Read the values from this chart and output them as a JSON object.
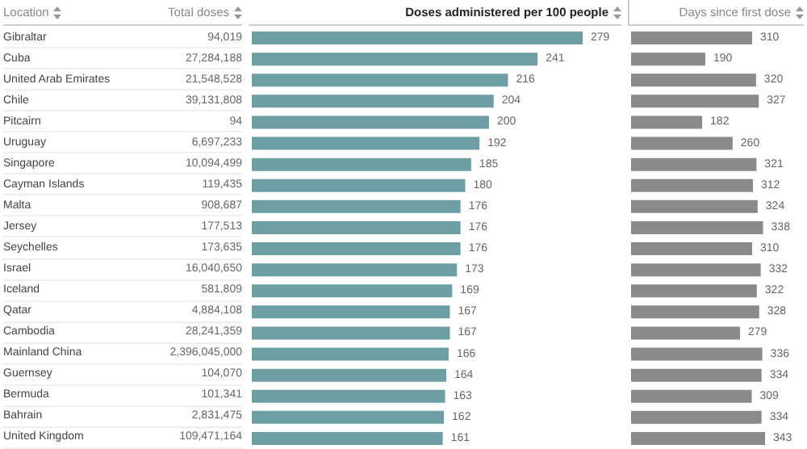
{
  "chart_data": [
    {
      "type": "other",
      "title": "Total doses",
      "ylabel": "Location",
      "categories": [
        "Gibraltar",
        "Cuba",
        "United Arab Emirates",
        "Chile",
        "Pitcairn",
        "Uruguay",
        "Singapore",
        "Cayman Islands",
        "Malta",
        "Jersey",
        "Seychelles",
        "Israel",
        "Iceland",
        "Qatar",
        "Cambodia",
        "Mainland China",
        "Guernsey",
        "Bermuda",
        "Bahrain",
        "United Kingdom"
      ],
      "value_labels": [
        "94,019",
        "27,284,188",
        "21,548,528",
        "39,131,808",
        "94",
        "6,697,233",
        "10,094,499",
        "119,435",
        "908,687",
        "177,513",
        "173,635",
        "16,040,650",
        "581,809",
        "4,884,108",
        "28,241,359",
        "2,396,045,000",
        "104,070",
        "101,341",
        "2,831,475",
        "109,471,164"
      ]
    },
    {
      "type": "bar",
      "orientation": "horizontal",
      "title": "Doses administered per 100 people",
      "categories": [
        null,
        null,
        null,
        null,
        null,
        null,
        null,
        null,
        null,
        null,
        null,
        null,
        null,
        null,
        null,
        null,
        null,
        null,
        null,
        null
      ],
      "values": [
        279,
        241,
        216,
        204,
        200,
        192,
        185,
        180,
        176,
        176,
        176,
        173,
        169,
        167,
        167,
        166,
        164,
        163,
        162,
        161
      ],
      "color": "#6c9ea3",
      "data_labels": true,
      "tick_labels": false
    },
    {
      "type": "bar",
      "orientation": "horizontal",
      "title": "Days since first dose",
      "categories": [
        null,
        null,
        null,
        null,
        null,
        null,
        null,
        null,
        null,
        null,
        null,
        null,
        null,
        null,
        null,
        null,
        null,
        null,
        null,
        null
      ],
      "values": [
        310,
        190,
        320,
        327,
        182,
        260,
        321,
        312,
        324,
        338,
        310,
        332,
        322,
        328,
        279,
        336,
        334,
        309,
        334,
        343
      ],
      "color": "#8a8a8a",
      "data_labels": true,
      "tick_labels": false
    }
  ]
}
